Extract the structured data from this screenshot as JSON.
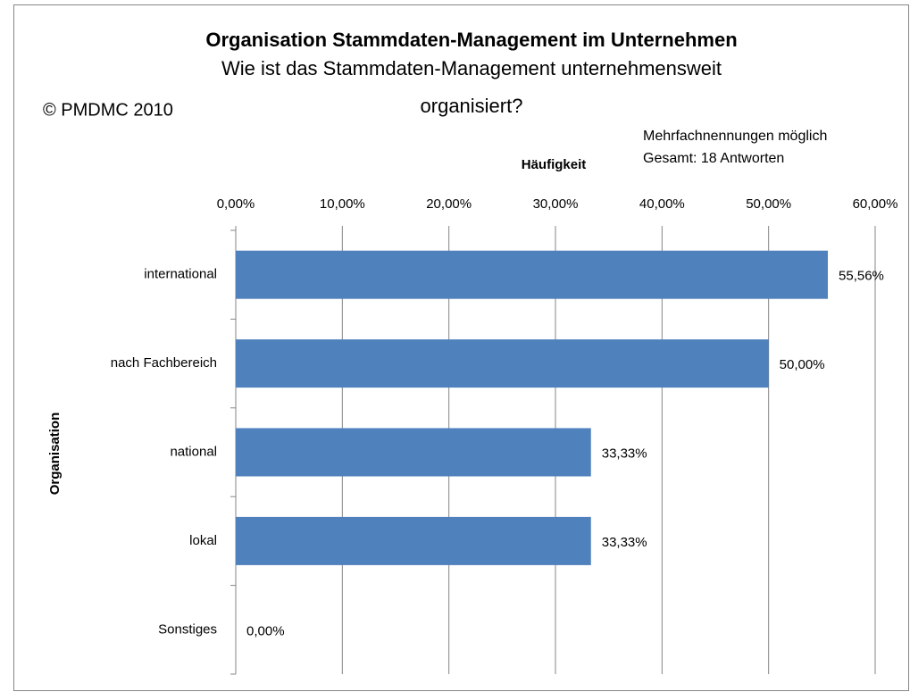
{
  "chart_data": {
    "type": "bar",
    "orientation": "horizontal",
    "title": "Organisation Stammdaten-Management im Unternehmen",
    "subtitle": [
      "Wie ist das Stammdaten-Management unternehmensweit",
      "organisiert?"
    ],
    "annotations": [
      "© PMDMC 2010",
      "Mehrfachnennungen möglich",
      "Gesamt: 18 Antworten"
    ],
    "x_label": "Häufigkeit",
    "y_label": "Organisation",
    "categories": [
      "international",
      "nach Fachbereich",
      "national",
      "lokal",
      "Sonstiges"
    ],
    "values": [
      55.56,
      50.0,
      33.33,
      33.33,
      0.0
    ],
    "value_labels": [
      "55,56%",
      "50,00%",
      "33,33%",
      "33,33%",
      "0,00%"
    ],
    "color": "#4f81bd",
    "xlim": [
      0,
      60
    ],
    "xticks": [
      {
        "value": 0,
        "label": "0,00%"
      },
      {
        "value": 10,
        "label": "10,00%"
      },
      {
        "value": 20,
        "label": "20,00%"
      },
      {
        "value": 30,
        "label": "30,00%"
      },
      {
        "value": 40,
        "label": "40,00%"
      },
      {
        "value": 50,
        "label": "50,00%"
      },
      {
        "value": 60,
        "label": "60,00%"
      }
    ],
    "grid": true
  }
}
